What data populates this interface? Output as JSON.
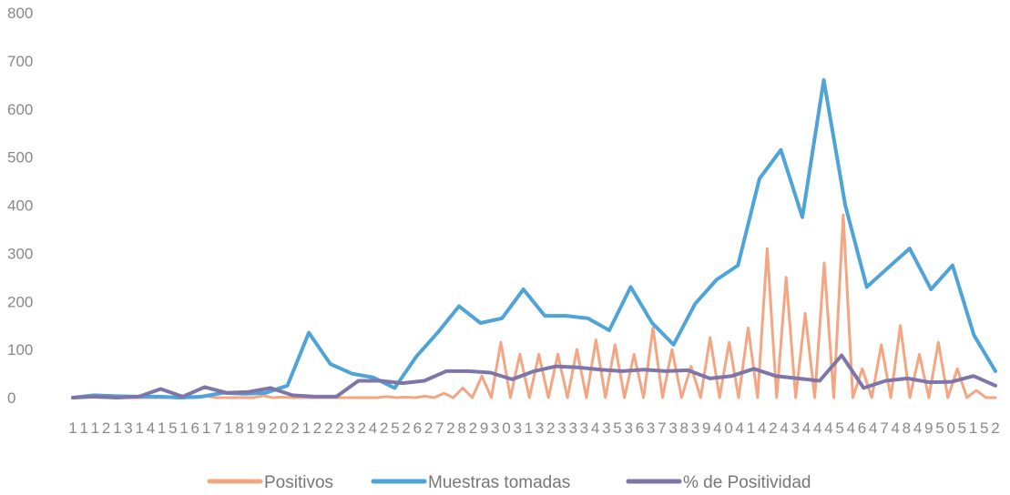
{
  "chart_data": {
    "type": "line",
    "title": "",
    "xlabel": "",
    "ylabel": "",
    "ylim": [
      0,
      800
    ],
    "yticks": [
      "0",
      "100",
      "200",
      "300",
      "400",
      "500",
      "600",
      "700",
      "800"
    ],
    "xticks": [
      "1",
      "1",
      "1",
      "2",
      "1",
      "3",
      "1",
      "4",
      "1",
      "5",
      "1",
      "6",
      "1",
      "7",
      "1",
      "8",
      "1",
      "9",
      "2",
      "0",
      "2",
      "1",
      "2",
      "2",
      "2",
      "3",
      "2",
      "4",
      "2",
      "5",
      "2",
      "6",
      "2",
      "7",
      "2",
      "8",
      "2",
      "9",
      "3",
      "0",
      "3",
      "1",
      "3",
      "2",
      "3",
      "3",
      "3",
      "4",
      "3",
      "5",
      "3",
      "6",
      "3",
      "7",
      "3",
      "8",
      "3",
      "9",
      "4",
      "0",
      "4",
      "1",
      "4",
      "2",
      "4",
      "3",
      "4",
      "4",
      "4",
      "5",
      "4",
      "6",
      "4",
      "7",
      "4",
      "8",
      "4",
      "9",
      "5",
      "0",
      "5",
      "1",
      "5",
      "2"
    ],
    "grid": false,
    "legend_position": "bottom",
    "series": [
      {
        "name": "Positivos",
        "color": "#f4a582",
        "values": [
          0,
          2,
          1,
          0,
          1,
          0,
          0,
          0,
          0,
          0,
          0,
          0,
          0,
          0,
          3,
          0,
          0,
          0,
          0,
          0,
          4,
          0,
          1,
          0,
          0,
          0,
          0,
          0,
          0,
          0,
          0,
          0,
          0,
          2,
          0,
          1,
          0,
          3,
          0,
          9,
          0,
          20,
          0,
          45,
          0,
          115,
          0,
          90,
          0,
          90,
          0,
          90,
          0,
          100,
          0,
          120,
          0,
          110,
          0,
          90,
          0,
          145,
          0,
          100,
          0,
          65,
          0,
          125,
          0,
          115,
          0,
          145,
          0,
          310,
          0,
          250,
          0,
          175,
          0,
          280,
          0,
          380,
          0,
          60,
          0,
          110,
          0,
          150,
          0,
          90,
          0,
          115,
          0,
          60,
          0,
          15,
          0,
          0
        ]
      },
      {
        "name": "Muestras tomadas",
        "color": "#4ea3d8",
        "values": [
          0,
          5,
          3,
          2,
          2,
          0,
          2,
          10,
          8,
          10,
          25,
          135,
          70,
          50,
          42,
          20,
          85,
          135,
          190,
          155,
          165,
          225,
          170,
          170,
          165,
          140,
          230,
          155,
          110,
          195,
          245,
          275,
          455,
          515,
          375,
          660,
          400,
          230,
          270,
          310,
          225,
          275,
          130,
          55
        ]
      },
      {
        "name": "% de Positividad",
        "color": "#7e75a8",
        "values": [
          0,
          2,
          0,
          2,
          18,
          2,
          22,
          10,
          12,
          20,
          5,
          2,
          2,
          35,
          35,
          30,
          35,
          55,
          55,
          52,
          38,
          55,
          65,
          63,
          58,
          55,
          58,
          55,
          57,
          40,
          45,
          60,
          45,
          40,
          35,
          88,
          20,
          35,
          40,
          32,
          33,
          45,
          25
        ]
      }
    ]
  }
}
